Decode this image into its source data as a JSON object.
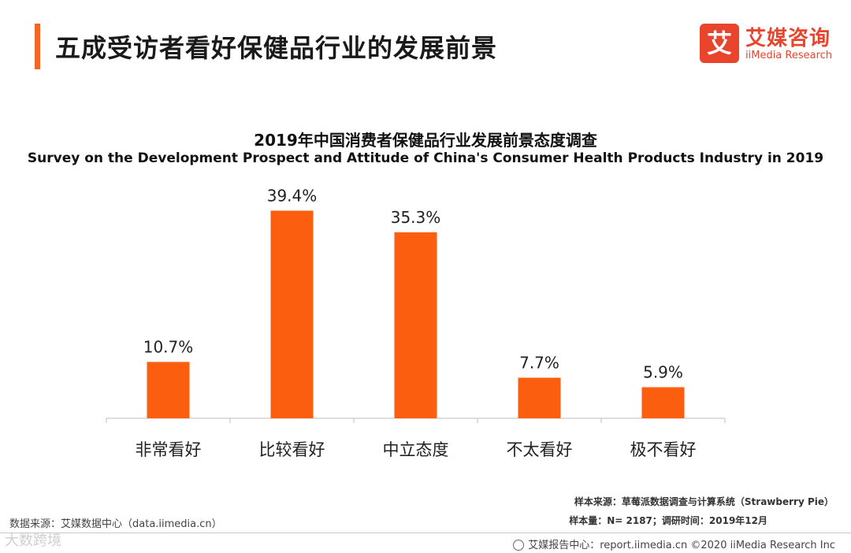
{
  "header": {
    "title": "五成受访者看好保健品行业的发展前景",
    "accent_color": "#f26522"
  },
  "logo": {
    "mark": "艾",
    "cn": "艾媒咨询",
    "en": "iiMedia Research",
    "color": "#e8452c"
  },
  "chart_data": {
    "type": "bar",
    "title": "2019年中国消费者保健品行业发展前景态度调查",
    "subtitle": "Survey on the Development Prospect and Attitude of China's Consumer Health Products Industry in 2019",
    "categories": [
      "非常看好",
      "比较看好",
      "中立态度",
      "不太看好",
      "极不看好"
    ],
    "values": [
      10.7,
      39.4,
      35.3,
      7.7,
      5.9
    ],
    "value_labels": [
      "10.7%",
      "39.4%",
      "35.3%",
      "7.7%",
      "5.9%"
    ],
    "unit": "%",
    "ylim": [
      0,
      45
    ],
    "bar_color": "#fb5e0e",
    "grid": false,
    "xlabel": "",
    "ylabel": ""
  },
  "footer": {
    "source": "数据来源：艾媒数据中心（data.iimedia.cn）",
    "sample_source": "样本来源：草莓派数据调查与计算系统（Strawberry Pie）",
    "sample_info": "样本量：N= 2187；调研时间：2019年12月",
    "copyright": "艾媒报告中心：report.iimedia.cn ©2020  iiMedia Research  Inc",
    "watermark": "大数跨境"
  }
}
